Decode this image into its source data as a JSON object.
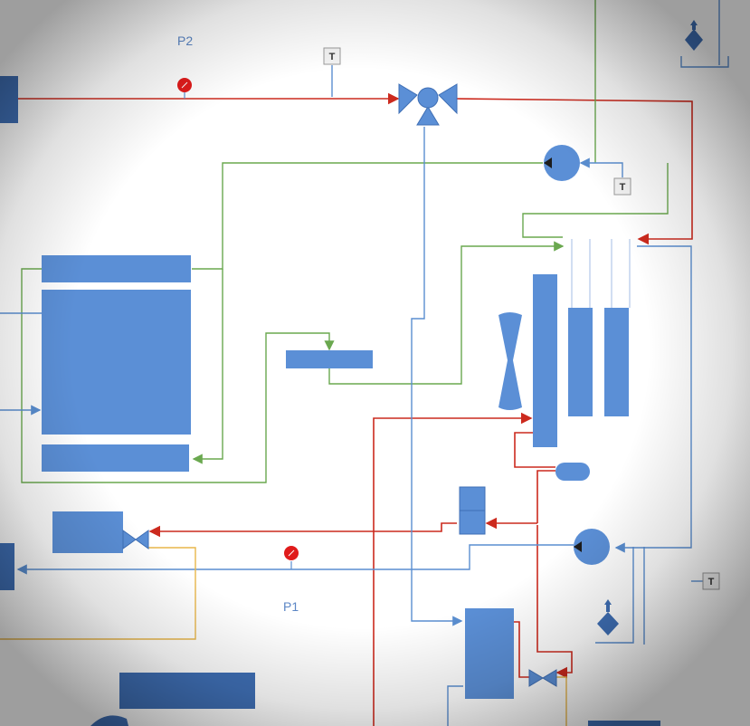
{
  "labels": {
    "p2": "P2",
    "p1": "P1"
  },
  "sensor_label": "T",
  "colors": {
    "component": "#5b8fd6",
    "component_dark": "#3f6fb5",
    "line_red": "#cc2a1e",
    "line_green": "#6aa84f",
    "line_blue": "#5a8ed0",
    "line_yellow": "#e8b64a",
    "gauge": "#e01b1b"
  }
}
